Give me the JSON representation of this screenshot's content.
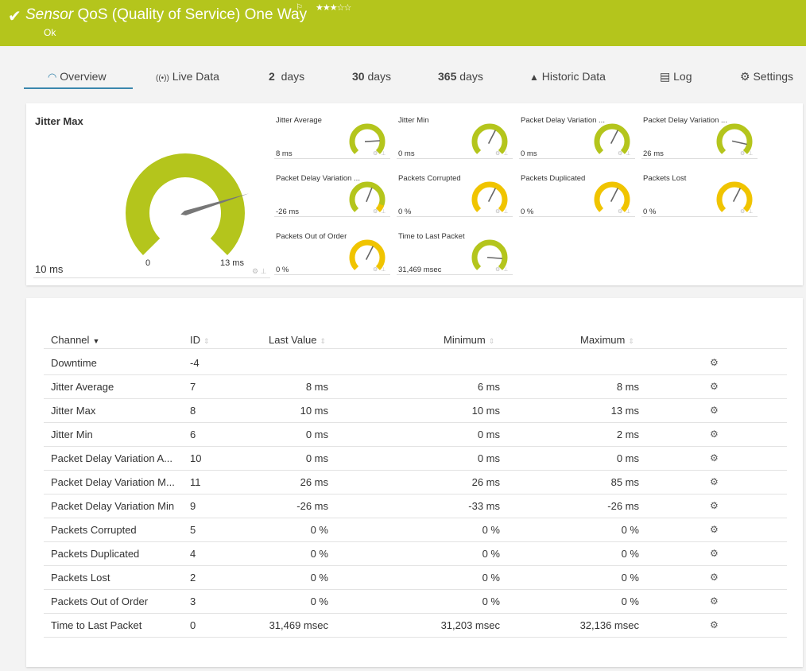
{
  "header": {
    "check_icon": "checkmark-icon",
    "title_prefix": "Sensor",
    "title": "QoS (Quality of Service) One Way",
    "flag": "⚐",
    "stars": "★★★☆☆",
    "status": "Ok",
    "bg_color": "#b4c51c"
  },
  "tabs": [
    {
      "icon": "◠",
      "label": "Overview"
    },
    {
      "icon": "((•))",
      "label": "Live Data"
    },
    {
      "num": "2",
      "label": "days"
    },
    {
      "num": "30",
      "label": "days"
    },
    {
      "num": "365",
      "label": "days"
    },
    {
      "icon": "▲",
      "label": "Historic Data"
    },
    {
      "icon": "▤",
      "label": "Log"
    },
    {
      "icon": "⚙",
      "label": "Settings"
    }
  ],
  "main_gauge": {
    "title": "Jitter Max",
    "value": "10 ms",
    "min": "0",
    "max": "13 ms",
    "fraction": 0.77
  },
  "small_gauges": [
    {
      "label": "Jitter Average",
      "value": "8 ms",
      "color": "#b4c51c",
      "fraction": 0.82
    },
    {
      "label": "Jitter Min",
      "value": "0 ms",
      "color": "#b4c51c",
      "fraction": 0.6
    },
    {
      "label": "Packet Delay Variation ...",
      "value": "0 ms",
      "color": "#b4c51c",
      "fraction": 0.6
    },
    {
      "label": "Packet Delay Variation ...",
      "value": "26 ms",
      "color": "#b4c51c",
      "fraction": 0.88
    },
    {
      "label": "Packet Delay Variation ...",
      "value": "-26 ms",
      "color": "#b4c51c",
      "fraction": 0.58,
      "warn": true
    },
    {
      "label": "Packets Corrupted",
      "value": "0 %",
      "color": "#f0c400",
      "fraction": 0.6
    },
    {
      "label": "Packets Duplicated",
      "value": "0 %",
      "color": "#f0c400",
      "fraction": 0.6
    },
    {
      "label": "Packets Lost",
      "value": "0 %",
      "color": "#f0c400",
      "fraction": 0.6
    },
    {
      "label": "Packets Out of Order",
      "value": "0 %",
      "color": "#f0c400",
      "fraction": 0.6
    },
    {
      "label": "Time to Last Packet",
      "value": "31,469 msec",
      "color": "#b4c51c",
      "fraction": 0.85
    }
  ],
  "table": {
    "headers": [
      "Channel",
      "ID",
      "Last Value",
      "Minimum",
      "Maximum"
    ],
    "rows": [
      [
        "Downtime",
        "-4",
        "",
        "",
        ""
      ],
      [
        "Jitter Average",
        "7",
        "8 ms",
        "6 ms",
        "8 ms"
      ],
      [
        "Jitter Max",
        "8",
        "10 ms",
        "10 ms",
        "13 ms"
      ],
      [
        "Jitter Min",
        "6",
        "0 ms",
        "0 ms",
        "2 ms"
      ],
      [
        "Packet Delay Variation A...",
        "10",
        "0 ms",
        "0 ms",
        "0 ms"
      ],
      [
        "Packet Delay Variation M...",
        "11",
        "26 ms",
        "26 ms",
        "85 ms"
      ],
      [
        "Packet Delay Variation Min",
        "9",
        "-26 ms",
        "-33 ms",
        "-26 ms"
      ],
      [
        "Packets Corrupted",
        "5",
        "0 %",
        "0 %",
        "0 %"
      ],
      [
        "Packets Duplicated",
        "4",
        "0 %",
        "0 %",
        "0 %"
      ],
      [
        "Packets Lost",
        "2",
        "0 %",
        "0 %",
        "0 %"
      ],
      [
        "Packets Out of Order",
        "3",
        "0 %",
        "0 %",
        "0 %"
      ],
      [
        "Time to Last Packet",
        "0",
        "31,469 msec",
        "31,203 msec",
        "32,136 msec"
      ]
    ]
  }
}
